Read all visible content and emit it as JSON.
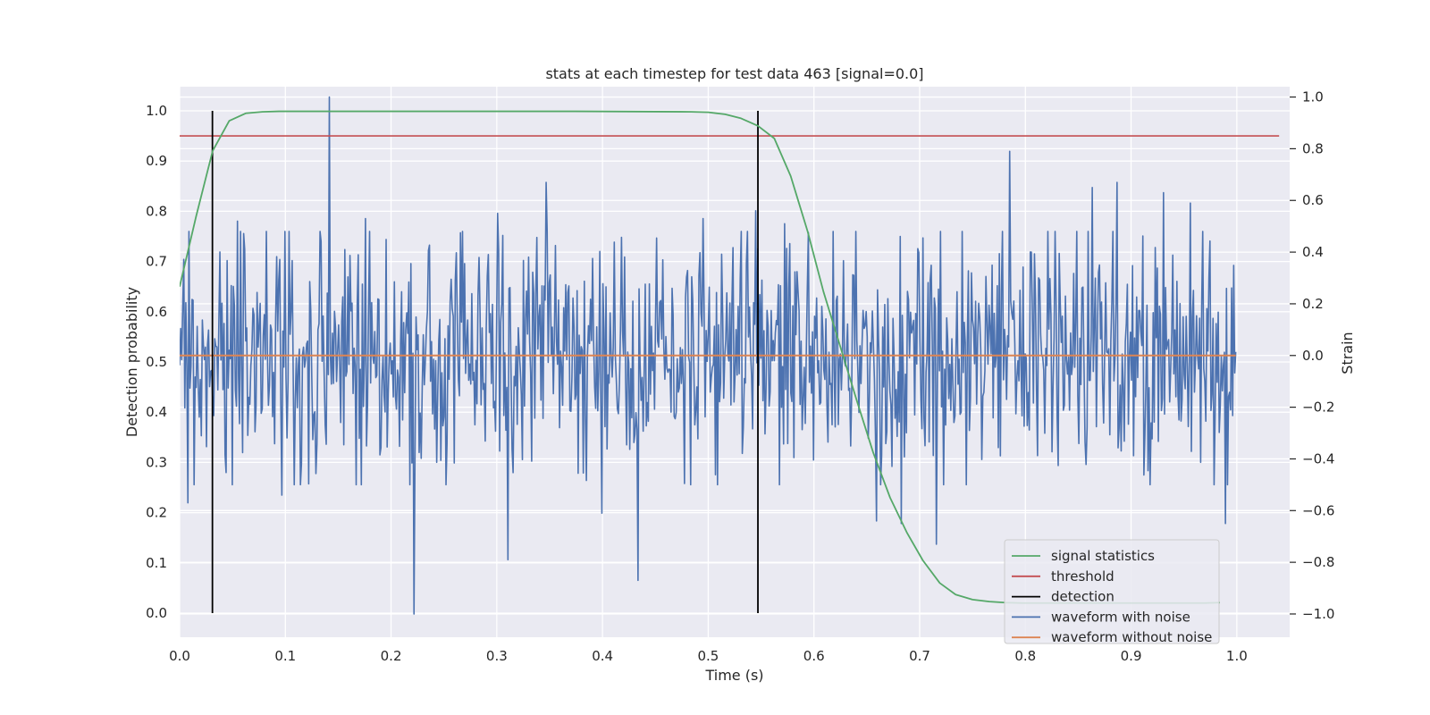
{
  "chart_data": {
    "type": "line",
    "title": "stats at each timestep for test data 463 [signal=0.0]",
    "xlabel": "Time (s)",
    "ylabel": "Detection probability",
    "y2label": "Strain",
    "xlim": [
      0.0,
      1.05
    ],
    "ylim": [
      -0.048,
      1.048
    ],
    "y2lim": [
      -1.09,
      1.04
    ],
    "xticks": [
      "0.0",
      "0.1",
      "0.2",
      "0.3",
      "0.4",
      "0.5",
      "0.6",
      "0.7",
      "0.8",
      "0.9",
      "1.0"
    ],
    "yticks": [
      "0.0",
      "0.1",
      "0.2",
      "0.3",
      "0.4",
      "0.5",
      "0.6",
      "0.7",
      "0.8",
      "0.9",
      "1.0"
    ],
    "y2ticks": [
      "−1.0",
      "−0.8",
      "−0.6",
      "−0.4",
      "−0.2",
      "0.0",
      "0.2",
      "0.4",
      "0.6",
      "0.8",
      "1.0"
    ],
    "grid": true,
    "legend_position": "bottom-right",
    "series": [
      {
        "name": "signal statistics",
        "axis": "left",
        "color": "#55a868",
        "x": [
          0.0,
          0.0156,
          0.0312,
          0.0469,
          0.0625,
          0.0781,
          0.0938,
          0.125,
          0.25,
          0.375,
          0.484,
          0.5,
          0.516,
          0.531,
          0.547,
          0.5625,
          0.578,
          0.594,
          0.609,
          0.625,
          0.641,
          0.656,
          0.672,
          0.688,
          0.703,
          0.719,
          0.734,
          0.75,
          0.766,
          0.781,
          0.797,
          0.812,
          0.828,
          0.844,
          0.859,
          0.875,
          0.891,
          0.906,
          0.922,
          0.938,
          0.953,
          0.969,
          0.984
        ],
        "y": [
          0.65,
          0.79,
          0.92,
          0.98,
          0.995,
          0.998,
          0.999,
          0.999,
          0.999,
          0.999,
          0.998,
          0.997,
          0.993,
          0.985,
          0.97,
          0.945,
          0.87,
          0.76,
          0.64,
          0.53,
          0.42,
          0.32,
          0.23,
          0.16,
          0.105,
          0.06,
          0.037,
          0.027,
          0.023,
          0.021,
          0.02,
          0.02,
          0.02,
          0.02,
          0.02,
          0.02,
          0.02,
          0.02,
          0.02,
          0.02,
          0.02,
          0.02,
          0.021
        ]
      },
      {
        "name": "threshold",
        "axis": "left",
        "color": "#c44e52",
        "x": [
          0.0,
          1.04
        ],
        "y": [
          0.95,
          0.95
        ]
      },
      {
        "name": "detection",
        "axis": "left",
        "color": "#000000",
        "segments": [
          {
            "x": 0.031,
            "y": [
              0.0,
              1.0
            ]
          },
          {
            "x": 0.547,
            "y": [
              0.0,
              1.0
            ]
          }
        ]
      },
      {
        "name": "waveform with noise",
        "axis": "right",
        "color": "#4c72b0",
        "x_range": [
          0.0,
          0.999
        ],
        "noise_seed": 463,
        "extremes": [
          {
            "x": 0.142,
            "y": 1.0
          },
          {
            "x": 0.222,
            "y": -1.0
          },
          {
            "x": 0.347,
            "y": 0.67
          },
          {
            "x": 0.785,
            "y": 0.79
          },
          {
            "x": 0.311,
            "y": -0.79
          },
          {
            "x": 0.434,
            "y": -0.87
          },
          {
            "x": 0.008,
            "y": -0.57
          },
          {
            "x": 0.097,
            "y": -0.54
          },
          {
            "x": 0.399,
            "y": -0.61
          },
          {
            "x": 0.683,
            "y": -0.65
          },
          {
            "x": 0.659,
            "y": -0.64
          },
          {
            "x": 0.931,
            "y": 0.63
          },
          {
            "x": 0.989,
            "y": -0.65
          },
          {
            "x": 0.716,
            "y": -0.73
          },
          {
            "x": 0.055,
            "y": 0.52
          },
          {
            "x": 0.176,
            "y": 0.53
          },
          {
            "x": 0.301,
            "y": 0.55
          },
          {
            "x": 0.495,
            "y": 0.53
          },
          {
            "x": 0.545,
            "y": 0.56
          },
          {
            "x": 0.863,
            "y": 0.65
          },
          {
            "x": 0.887,
            "y": 0.67
          },
          {
            "x": 0.956,
            "y": 0.59
          },
          {
            "x": 0.572,
            "y": 0.51
          }
        ]
      },
      {
        "name": "waveform without noise",
        "axis": "right",
        "color": "#dd8452",
        "x": [
          0.0,
          0.999
        ],
        "y": [
          0.0,
          0.0
        ]
      }
    ]
  }
}
